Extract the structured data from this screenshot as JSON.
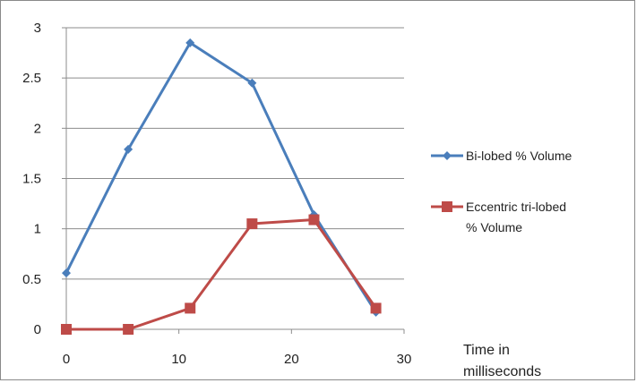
{
  "chart_data": {
    "type": "line",
    "title": "",
    "xlabel": "Time in milliseconds",
    "ylabel": "",
    "xlim": [
      0,
      30
    ],
    "ylim": [
      0,
      3
    ],
    "x_ticks": [
      0,
      10,
      20,
      30
    ],
    "y_ticks": [
      0,
      0.5,
      1,
      1.5,
      2,
      2.5,
      3
    ],
    "x_tick_labels": [
      "0",
      "10",
      "20",
      "30"
    ],
    "y_tick_labels": [
      "0",
      "0.5",
      "1",
      "1.5",
      "2",
      "2.5",
      "3"
    ],
    "grid": "horizontal",
    "legend_position": "right",
    "series": [
      {
        "name": "Bi-lobed  % Volume",
        "color": "#4a7ebb",
        "marker": "diamond",
        "x": [
          0,
          5.5,
          11,
          16.5,
          22,
          27.5
        ],
        "y": [
          0.56,
          1.79,
          2.85,
          2.45,
          1.14,
          0.17
        ]
      },
      {
        "name": "Eccentric tri-lobed % Volume",
        "name_lines": [
          "Eccentric tri-lobed",
          "% Volume"
        ],
        "color": "#be4b48",
        "marker": "square",
        "x": [
          0,
          5.5,
          11,
          16.5,
          22,
          27.5
        ],
        "y": [
          0.0,
          0.0,
          0.21,
          1.05,
          1.09,
          0.21
        ]
      }
    ]
  }
}
